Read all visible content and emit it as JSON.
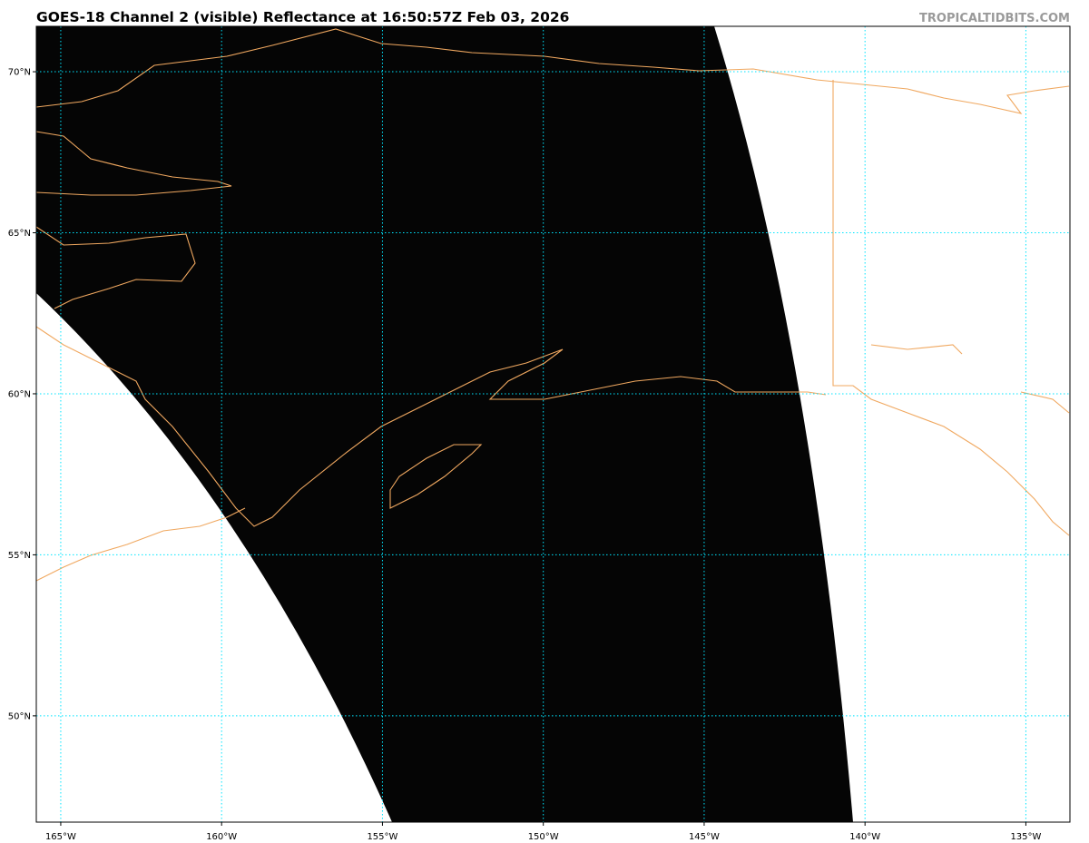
{
  "map": {
    "title": "GOES-18 Channel 2 (visible) Reflectance at 16:50:57Z Feb 03, 2026",
    "watermark": "TROPICALTIDBITS.COM",
    "xlim": [
      -165.76,
      -133.63
    ],
    "ylim": [
      46.7,
      71.41
    ],
    "xticks": [
      {
        "value": -165,
        "label": "165°W"
      },
      {
        "value": -160,
        "label": "160°W"
      },
      {
        "value": -155,
        "label": "155°W"
      },
      {
        "value": -150,
        "label": "150°W"
      },
      {
        "value": -145,
        "label": "145°W"
      },
      {
        "value": -140,
        "label": "140°W"
      },
      {
        "value": -135,
        "label": "135°W"
      }
    ],
    "yticks": [
      {
        "value": 50,
        "label": "50°N"
      },
      {
        "value": 55,
        "label": "55°N"
      },
      {
        "value": 60,
        "label": "60°N"
      },
      {
        "value": 65,
        "label": "65°N"
      },
      {
        "value": 70,
        "label": "70°N"
      }
    ],
    "grid": true
  }
}
